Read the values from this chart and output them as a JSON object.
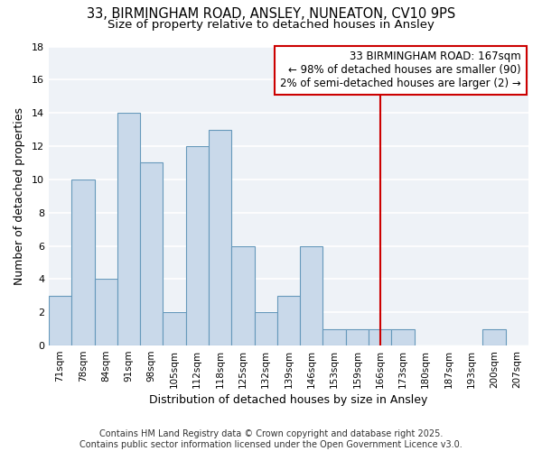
{
  "title1": "33, BIRMINGHAM ROAD, ANSLEY, NUNEATON, CV10 9PS",
  "title2": "Size of property relative to detached houses in Ansley",
  "xlabel": "Distribution of detached houses by size in Ansley",
  "ylabel": "Number of detached properties",
  "categories": [
    "71sqm",
    "78sqm",
    "84sqm",
    "91sqm",
    "98sqm",
    "105sqm",
    "112sqm",
    "118sqm",
    "125sqm",
    "132sqm",
    "139sqm",
    "146sqm",
    "153sqm",
    "159sqm",
    "166sqm",
    "173sqm",
    "180sqm",
    "187sqm",
    "193sqm",
    "200sqm",
    "207sqm"
  ],
  "values": [
    3,
    10,
    4,
    14,
    11,
    2,
    12,
    13,
    6,
    2,
    3,
    6,
    1,
    1,
    1,
    1,
    0,
    0,
    0,
    1,
    0
  ],
  "bar_color": "#c9d9ea",
  "bar_edge_color": "#6699bb",
  "vline_x_index": 14,
  "vline_color": "#cc0000",
  "annotation_text": "33 BIRMINGHAM ROAD: 167sqm\n← 98% of detached houses are smaller (90)\n2% of semi-detached houses are larger (2) →",
  "annotation_box_color": "#ffffff",
  "annotation_box_edge_color": "#cc0000",
  "ylim": [
    0,
    18
  ],
  "yticks": [
    0,
    2,
    4,
    6,
    8,
    10,
    12,
    14,
    16,
    18
  ],
  "bg_color": "#eef2f7",
  "footer_text": "Contains HM Land Registry data © Crown copyright and database right 2025.\nContains public sector information licensed under the Open Government Licence v3.0.",
  "title_fontsize": 10.5,
  "subtitle_fontsize": 9.5,
  "axis_label_fontsize": 9,
  "tick_fontsize": 7.5,
  "annotation_fontsize": 8.5
}
